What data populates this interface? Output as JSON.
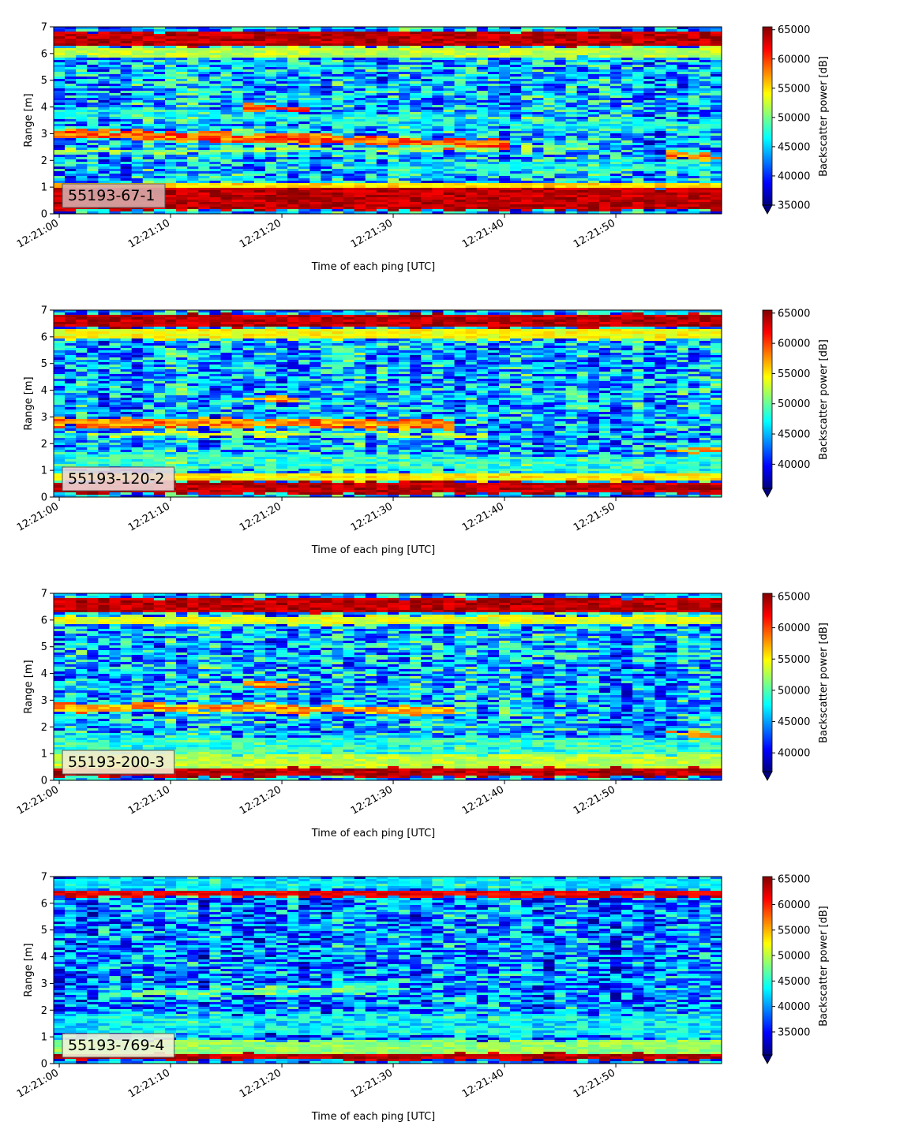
{
  "figure": {
    "colormap": "jet"
  },
  "chart_data": [
    {
      "type": "heatmap",
      "panel_label": "55193-67-1",
      "label_box_color": "#d7aaaa",
      "xlabel": "Time of each ping [UTC]",
      "ylabel": "Range [m]",
      "colorbar_label": "Backscatter power [dB]",
      "x_tick_labels": [
        "12:21:00",
        "12:21:10",
        "12:21:20",
        "12:21:30",
        "12:21:40",
        "12:21:50"
      ],
      "x_tick_seconds": [
        0,
        10,
        20,
        30,
        40,
        50
      ],
      "xlim_seconds": [
        -0.5,
        59.5
      ],
      "ylim": [
        0,
        7
      ],
      "y_ticks": [
        0,
        1,
        2,
        3,
        4,
        5,
        6,
        7
      ],
      "colorbar_ticks": [
        35000,
        40000,
        45000,
        50000,
        55000,
        60000,
        65000
      ],
      "clim": [
        35000,
        65500
      ],
      "colorbar_extend": "min",
      "seed": 11,
      "features": [
        {
          "kind": "band",
          "y": 0.55,
          "width": 0.75,
          "level": 1.0
        },
        {
          "kind": "band",
          "y": 1.05,
          "width": 0.12,
          "level": 0.72
        },
        {
          "kind": "band",
          "y": 6.55,
          "width": 0.45,
          "level": 1.0
        },
        {
          "kind": "band",
          "y": 6.05,
          "width": 0.3,
          "level": 0.62
        },
        {
          "kind": "layer",
          "x0": 0,
          "x1": 40,
          "y0": 3.0,
          "y1": 2.6,
          "width": 0.35,
          "level": 0.88
        },
        {
          "kind": "layer",
          "x0": 0,
          "x1": 48,
          "y0": 2.3,
          "y1": 2.5,
          "width": 0.18,
          "level": 0.6
        },
        {
          "kind": "layer",
          "x0": 17,
          "x1": 22,
          "y0": 4.0,
          "y1": 3.9,
          "width": 0.25,
          "level": 0.9
        },
        {
          "kind": "layer",
          "x0": 30,
          "x1": 59,
          "y0": 1.7,
          "y1": 1.8,
          "width": 0.4,
          "level": 0.45
        },
        {
          "kind": "layer",
          "x0": 55,
          "x1": 59,
          "y0": 2.2,
          "y1": 2.1,
          "width": 0.2,
          "level": 0.85
        },
        {
          "kind": "layer",
          "x0": 0,
          "x1": 59,
          "y0": 3.8,
          "y1": 3.2,
          "width": 0.4,
          "level": 0.45
        }
      ],
      "background_level": 0.3
    },
    {
      "type": "heatmap",
      "panel_label": "55193-120-2",
      "label_box_color": "#ecd6d6",
      "xlabel": "Time of each ping [UTC]",
      "ylabel": "Range [m]",
      "colorbar_label": "Backscatter power [dB]",
      "x_tick_labels": [
        "12:21:00",
        "12:21:10",
        "12:21:20",
        "12:21:30",
        "12:21:40",
        "12:21:50"
      ],
      "x_tick_seconds": [
        0,
        10,
        20,
        30,
        40,
        50
      ],
      "xlim_seconds": [
        -0.5,
        59.5
      ],
      "ylim": [
        0,
        7
      ],
      "y_ticks": [
        0,
        1,
        2,
        3,
        4,
        5,
        6,
        7
      ],
      "colorbar_ticks": [
        40000,
        45000,
        50000,
        55000,
        60000,
        65000
      ],
      "clim": [
        36000,
        65500
      ],
      "colorbar_extend": "min",
      "seed": 23,
      "features": [
        {
          "kind": "band",
          "y": 0.35,
          "width": 0.35,
          "level": 1.0
        },
        {
          "kind": "band",
          "y": 0.75,
          "width": 0.2,
          "level": 0.7
        },
        {
          "kind": "band",
          "y": 6.6,
          "width": 0.4,
          "level": 1.0
        },
        {
          "kind": "band",
          "y": 6.1,
          "width": 0.3,
          "level": 0.68
        },
        {
          "kind": "layer",
          "x0": 0,
          "x1": 35,
          "y0": 2.8,
          "y1": 2.7,
          "width": 0.3,
          "level": 0.85
        },
        {
          "kind": "layer",
          "x0": 0,
          "x1": 38,
          "y0": 2.4,
          "y1": 2.3,
          "width": 0.15,
          "level": 0.65
        },
        {
          "kind": "layer",
          "x0": 17,
          "x1": 21,
          "y0": 3.7,
          "y1": 3.6,
          "width": 0.2,
          "level": 0.82
        },
        {
          "kind": "layer",
          "x0": 55,
          "x1": 59,
          "y0": 1.8,
          "y1": 1.7,
          "width": 0.15,
          "level": 0.85
        },
        {
          "kind": "layer",
          "x0": 0,
          "x1": 59,
          "y0": 1.4,
          "y1": 1.2,
          "width": 0.6,
          "level": 0.5
        }
      ],
      "background_level": 0.3
    },
    {
      "type": "heatmap",
      "panel_label": "55193-200-3",
      "label_box_color": "#f2ecd0",
      "xlabel": "Time of each ping [UTC]",
      "ylabel": "Range [m]",
      "colorbar_label": "Backscatter power [dB]",
      "x_tick_labels": [
        "12:21:00",
        "12:21:10",
        "12:21:20",
        "12:21:30",
        "12:21:40",
        "12:21:50"
      ],
      "x_tick_seconds": [
        0,
        10,
        20,
        30,
        40,
        50
      ],
      "xlim_seconds": [
        -0.5,
        59.5
      ],
      "ylim": [
        0,
        7
      ],
      "y_ticks": [
        0,
        1,
        2,
        3,
        4,
        5,
        6,
        7
      ],
      "colorbar_ticks": [
        40000,
        45000,
        50000,
        55000,
        60000,
        65000
      ],
      "clim": [
        37000,
        65500
      ],
      "colorbar_extend": "min",
      "seed": 37,
      "features": [
        {
          "kind": "band",
          "y": 0.3,
          "width": 0.25,
          "level": 1.0
        },
        {
          "kind": "band",
          "y": 0.7,
          "width": 0.45,
          "level": 0.62
        },
        {
          "kind": "band",
          "y": 6.55,
          "width": 0.45,
          "level": 1.0
        },
        {
          "kind": "band",
          "y": 6.0,
          "width": 0.25,
          "level": 0.66
        },
        {
          "kind": "layer",
          "x0": 0,
          "x1": 35,
          "y0": 2.75,
          "y1": 2.6,
          "width": 0.3,
          "level": 0.82
        },
        {
          "kind": "layer",
          "x0": 17,
          "x1": 21,
          "y0": 3.6,
          "y1": 3.6,
          "width": 0.2,
          "level": 0.82
        },
        {
          "kind": "layer",
          "x0": 55,
          "x1": 59,
          "y0": 1.75,
          "y1": 1.7,
          "width": 0.15,
          "level": 0.85
        },
        {
          "kind": "layer",
          "x0": 0,
          "x1": 59,
          "y0": 1.3,
          "y1": 1.2,
          "width": 0.7,
          "level": 0.5
        }
      ],
      "background_level": 0.3
    },
    {
      "type": "heatmap",
      "panel_label": "55193-769-4",
      "label_box_color": "#f0f3d8",
      "xlabel": "Time of each ping [UTC]",
      "ylabel": "Range [m]",
      "colorbar_label": "Backscatter power [dB]",
      "x_tick_labels": [
        "12:21:00",
        "12:21:10",
        "12:21:20",
        "12:21:30",
        "12:21:40",
        "12:21:50"
      ],
      "x_tick_seconds": [
        0,
        10,
        20,
        30,
        40,
        50
      ],
      "xlim_seconds": [
        -0.5,
        59.5
      ],
      "ylim": [
        0,
        7
      ],
      "y_ticks": [
        0,
        1,
        2,
        3,
        4,
        5,
        6,
        7
      ],
      "colorbar_ticks": [
        35000,
        40000,
        45000,
        50000,
        55000,
        60000,
        65000
      ],
      "clim": [
        30500,
        65500
      ],
      "colorbar_extend": "min",
      "seed": 53,
      "features": [
        {
          "kind": "band",
          "y": 0.25,
          "width": 0.15,
          "level": 1.0
        },
        {
          "kind": "band",
          "y": 0.6,
          "width": 0.45,
          "level": 0.58
        },
        {
          "kind": "band",
          "y": 6.35,
          "width": 0.15,
          "level": 0.95
        },
        {
          "kind": "band",
          "y": 6.75,
          "width": 0.3,
          "level": 0.4
        },
        {
          "kind": "layer",
          "x0": 5,
          "x1": 30,
          "y0": 2.6,
          "y1": 2.8,
          "width": 0.25,
          "level": 0.58
        },
        {
          "kind": "layer",
          "x0": 0,
          "x1": 59,
          "y0": 1.5,
          "y1": 1.4,
          "width": 0.8,
          "level": 0.45
        }
      ],
      "background_level": 0.25
    }
  ]
}
